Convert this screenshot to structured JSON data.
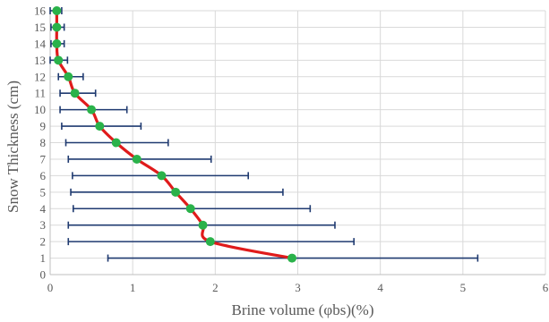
{
  "chart_data": {
    "type": "scatter",
    "xlabel": "Brine volume (φbs)(%)",
    "ylabel": "Snow Thickness (cm)",
    "xlim": [
      0,
      6
    ],
    "ylim": [
      0,
      16
    ],
    "x_ticks": [
      "0",
      "1",
      "2",
      "3",
      "4",
      "5",
      "6"
    ],
    "y_ticks": [
      "0",
      "1",
      "2",
      "3",
      "4",
      "5",
      "6",
      "7",
      "8",
      "9",
      "10",
      "11",
      "12",
      "13",
      "14",
      "15",
      "16"
    ],
    "grid": true,
    "legend": "none",
    "colors": {
      "line": "#e01b1b",
      "marker": "#2ab24a",
      "error_bar": "#1f3a70",
      "grid": "#d9d9d9",
      "text": "#595959"
    },
    "series": [
      {
        "y": [
          1,
          2,
          3,
          4,
          5,
          6,
          7,
          8,
          9,
          10,
          11,
          12,
          13,
          14,
          15,
          16
        ],
        "x": [
          2.93,
          1.94,
          1.85,
          1.7,
          1.52,
          1.35,
          1.05,
          0.8,
          0.6,
          0.5,
          0.3,
          0.22,
          0.1,
          0.08,
          0.08,
          0.08
        ],
        "x_low": [
          0.7,
          0.22,
          0.22,
          0.28,
          0.25,
          0.27,
          0.22,
          0.19,
          0.14,
          0.12,
          0.12,
          0.1,
          0.0,
          0.01,
          0.01,
          0.0
        ],
        "x_high": [
          5.18,
          3.68,
          3.45,
          3.15,
          2.82,
          2.4,
          1.95,
          1.43,
          1.1,
          0.93,
          0.55,
          0.4,
          0.21,
          0.17,
          0.17,
          0.14
        ]
      }
    ]
  }
}
